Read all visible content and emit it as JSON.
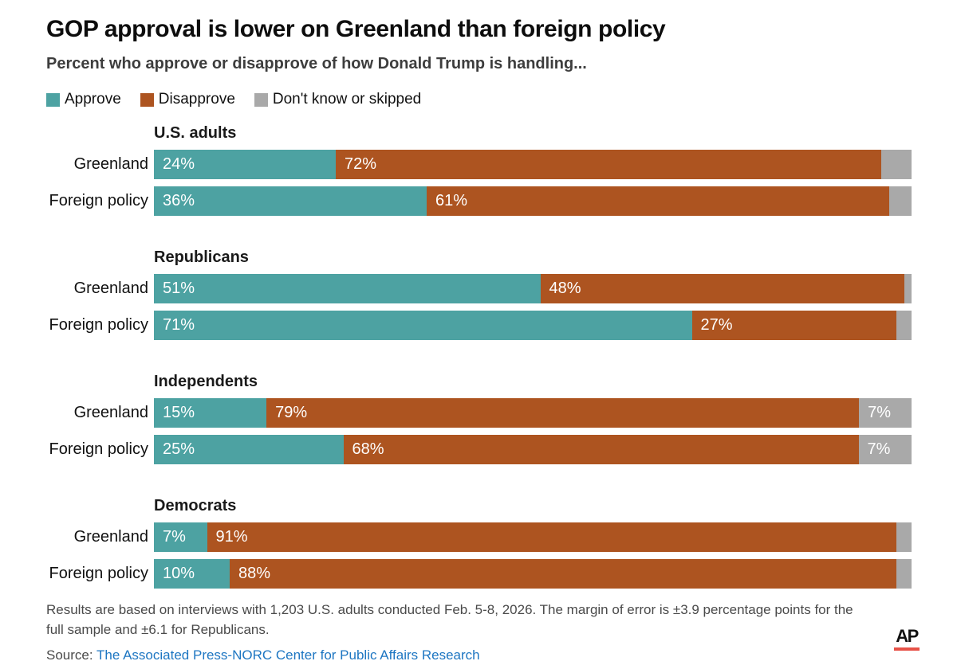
{
  "title": "GOP approval is lower on Greenland than foreign policy",
  "subtitle": "Percent who approve or disapprove of how Donald Trump is handling...",
  "legend": [
    {
      "key": "approve",
      "label": "Approve"
    },
    {
      "key": "disapprove",
      "label": "Disapprove"
    },
    {
      "key": "unknown",
      "label": "Don't know or skipped"
    }
  ],
  "colors": {
    "approve": "#4da2a2",
    "disapprove": "#ad5420",
    "unknown": "#a9a9a9",
    "link_blue": "#1d76c2",
    "ap_red": "#e75248"
  },
  "chart_data": {
    "type": "bar",
    "orientation": "horizontal",
    "stacked": true,
    "x_range_percent": [
      0,
      100
    ],
    "series_keys": [
      "approve",
      "disapprove",
      "unknown"
    ],
    "series_names": [
      "Approve",
      "Disapprove",
      "Don't know or skipped"
    ],
    "groups": [
      {
        "label": "U.S. adults",
        "rows": [
          {
            "category": "Greenland",
            "values": [
              24,
              72,
              4
            ],
            "labels": [
              "24%",
              "72%",
              ""
            ]
          },
          {
            "category": "Foreign policy",
            "values": [
              36,
              61,
              3
            ],
            "labels": [
              "36%",
              "61%",
              ""
            ]
          }
        ]
      },
      {
        "label": "Republicans",
        "rows": [
          {
            "category": "Greenland",
            "values": [
              51,
              48,
              1
            ],
            "labels": [
              "51%",
              "48%",
              ""
            ]
          },
          {
            "category": "Foreign policy",
            "values": [
              71,
              27,
              2
            ],
            "labels": [
              "71%",
              "27%",
              ""
            ]
          }
        ]
      },
      {
        "label": "Independents",
        "rows": [
          {
            "category": "Greenland",
            "values": [
              15,
              79,
              7
            ],
            "labels": [
              "15%",
              "79%",
              "7%"
            ]
          },
          {
            "category": "Foreign policy",
            "values": [
              25,
              68,
              7
            ],
            "labels": [
              "25%",
              "68%",
              "7%"
            ]
          }
        ]
      },
      {
        "label": "Democrats",
        "rows": [
          {
            "category": "Greenland",
            "values": [
              7,
              91,
              2
            ],
            "labels": [
              "7%",
              "91%",
              ""
            ]
          },
          {
            "category": "Foreign policy",
            "values": [
              10,
              88,
              2
            ],
            "labels": [
              "10%",
              "88%",
              ""
            ]
          }
        ]
      }
    ]
  },
  "footnote": "Results are based on interviews with 1,203 U.S. adults conducted Feb. 5-8, 2026. The margin of error is ±3.9 percentage points for the full sample and ±6.1 for Republicans.",
  "source_prefix": "Source: ",
  "source_link": "The Associated Press-NORC Center for Public Affairs Research",
  "logo_text": "AP"
}
